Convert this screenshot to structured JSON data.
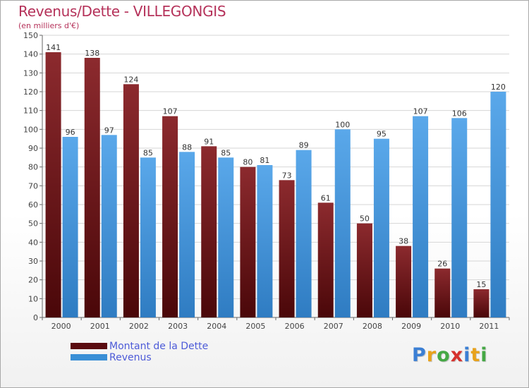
{
  "header": {
    "title": "Revenus/Dette - VILLEGONGIS",
    "subtitle": "(en milliers d'€)"
  },
  "colors": {
    "dette": "#7a1a1f",
    "revenus": "#3a8fd6",
    "title": "#b5325a",
    "legend_text": "#4d5bd8"
  },
  "chart_data": {
    "type": "bar",
    "title": "Revenus/Dette - VILLEGONGIS",
    "subtitle": "(en milliers d'€)",
    "categories": [
      "2000",
      "2001",
      "2002",
      "2003",
      "2004",
      "2005",
      "2006",
      "2007",
      "2008",
      "2009",
      "2010",
      "2011"
    ],
    "series": [
      {
        "name": "Montant de la Dette",
        "values": [
          141,
          138,
          124,
          107,
          91,
          80,
          73,
          61,
          50,
          38,
          26,
          15
        ]
      },
      {
        "name": "Revenus",
        "values": [
          96,
          97,
          85,
          88,
          85,
          81,
          89,
          100,
          95,
          107,
          106,
          120
        ]
      }
    ],
    "ylim": [
      0,
      150
    ],
    "yticks": [
      0,
      10,
      20,
      30,
      40,
      50,
      60,
      70,
      80,
      90,
      100,
      110,
      120,
      130,
      140,
      150
    ],
    "grid": true,
    "legend_position": "bottom-left"
  },
  "legend": {
    "items": [
      {
        "label": "Montant de la Dette"
      },
      {
        "label": "Revenus"
      }
    ]
  },
  "logo": {
    "letters": [
      {
        "ch": "P",
        "color": "#3b7fd4"
      },
      {
        "ch": "r",
        "color": "#e8a21c"
      },
      {
        "ch": "o",
        "color": "#45a845"
      },
      {
        "ch": "x",
        "color": "#d6312d"
      },
      {
        "ch": "i",
        "color": "#3b7fd4"
      },
      {
        "ch": "t",
        "color": "#e8a21c"
      },
      {
        "ch": "i",
        "color": "#45a845"
      }
    ]
  }
}
